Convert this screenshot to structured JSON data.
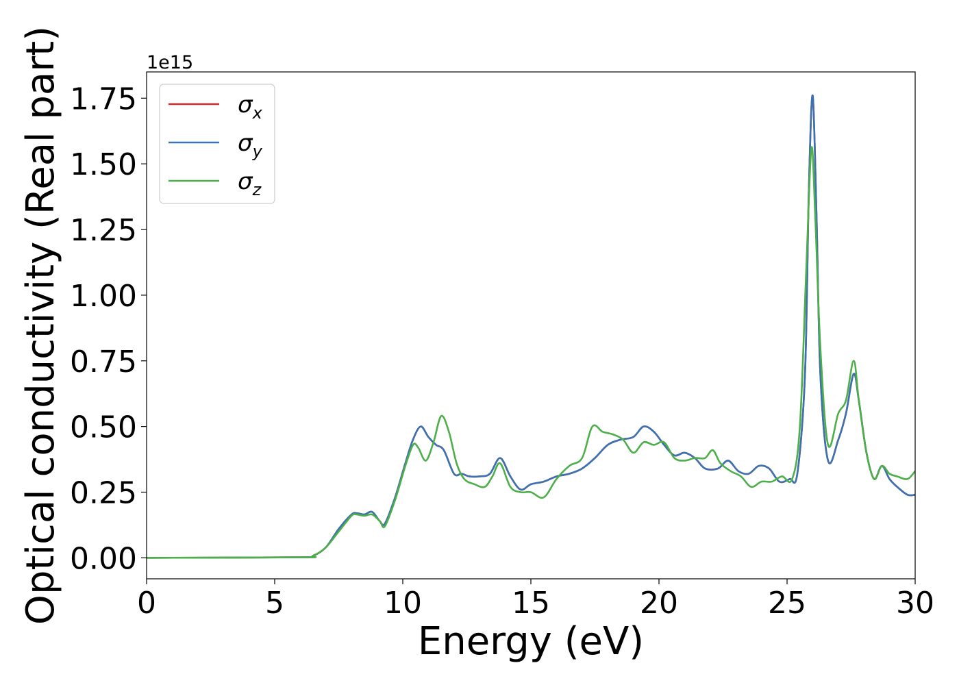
{
  "chart_data": {
    "type": "line",
    "xlabel": "Energy (eV)",
    "ylabel": "Optical conductivity (Real part)",
    "y_offset_label": "1e15",
    "xlim": [
      0,
      30
    ],
    "ylim": [
      -0.08,
      1.85
    ],
    "x_ticks": [
      0,
      5,
      10,
      15,
      20,
      25,
      30
    ],
    "x_tick_labels": [
      "0",
      "5",
      "10",
      "15",
      "20",
      "25",
      "30"
    ],
    "y_ticks": [
      0,
      0.25,
      0.5,
      0.75,
      1.0,
      1.25,
      1.5,
      1.75
    ],
    "y_tick_labels": [
      "0.00",
      "0.25",
      "0.50",
      "0.75",
      "1.00",
      "1.25",
      "1.50",
      "1.75"
    ],
    "grid": false,
    "legend_position": "top-left",
    "series": [
      {
        "name": "σ",
        "subscript": "x",
        "color": "#d62728",
        "x": [
          0,
          6,
          6.5,
          7,
          7.5,
          8,
          8.2,
          8.5,
          8.8,
          9.1,
          9.3,
          9.7,
          10.1,
          10.4,
          10.7,
          11,
          11.3,
          11.6,
          12,
          12.3,
          12.6,
          13,
          13.4,
          13.8,
          14.2,
          14.6,
          15,
          15.5,
          16,
          16.5,
          17,
          17.5,
          18,
          18.5,
          19,
          19.4,
          19.8,
          20.2,
          20.6,
          21,
          21.4,
          21.8,
          22.3,
          22.7,
          23.1,
          23.5,
          23.9,
          24.3,
          24.7,
          25.1,
          25.4,
          25.7,
          25.85,
          26,
          26.15,
          26.3,
          26.6,
          27,
          27.3,
          27.6,
          27.8,
          28.1,
          28.4,
          28.7,
          29,
          29.3,
          29.7,
          30
        ],
        "values": [
          0.0,
          0.002,
          0.008,
          0.04,
          0.11,
          0.165,
          0.17,
          0.165,
          0.175,
          0.14,
          0.13,
          0.23,
          0.36,
          0.45,
          0.5,
          0.46,
          0.43,
          0.41,
          0.32,
          0.32,
          0.31,
          0.31,
          0.32,
          0.38,
          0.31,
          0.26,
          0.28,
          0.29,
          0.31,
          0.32,
          0.34,
          0.38,
          0.43,
          0.45,
          0.46,
          0.5,
          0.48,
          0.43,
          0.39,
          0.4,
          0.38,
          0.34,
          0.34,
          0.37,
          0.33,
          0.32,
          0.35,
          0.34,
          0.29,
          0.3,
          0.32,
          0.7,
          1.4,
          1.76,
          1.3,
          0.7,
          0.37,
          0.45,
          0.55,
          0.7,
          0.6,
          0.4,
          0.3,
          0.35,
          0.3,
          0.27,
          0.24,
          0.24
        ]
      },
      {
        "name": "σ",
        "subscript": "y",
        "color": "#3a73b2",
        "x": [
          0,
          6,
          6.5,
          7,
          7.5,
          8,
          8.2,
          8.5,
          8.8,
          9.1,
          9.3,
          9.7,
          10.1,
          10.4,
          10.7,
          11,
          11.3,
          11.6,
          12,
          12.3,
          12.6,
          13,
          13.4,
          13.8,
          14.2,
          14.6,
          15,
          15.5,
          16,
          16.5,
          17,
          17.5,
          18,
          18.5,
          19,
          19.4,
          19.8,
          20.2,
          20.6,
          21,
          21.4,
          21.8,
          22.3,
          22.7,
          23.1,
          23.5,
          23.9,
          24.3,
          24.7,
          25.1,
          25.4,
          25.7,
          25.85,
          26,
          26.15,
          26.3,
          26.6,
          27,
          27.3,
          27.6,
          27.8,
          28.1,
          28.4,
          28.7,
          29,
          29.3,
          29.7,
          30
        ],
        "values": [
          0.0,
          0.002,
          0.008,
          0.04,
          0.11,
          0.165,
          0.17,
          0.165,
          0.175,
          0.14,
          0.13,
          0.23,
          0.36,
          0.45,
          0.5,
          0.46,
          0.43,
          0.41,
          0.32,
          0.32,
          0.31,
          0.31,
          0.32,
          0.38,
          0.31,
          0.26,
          0.28,
          0.29,
          0.31,
          0.32,
          0.34,
          0.38,
          0.43,
          0.45,
          0.46,
          0.5,
          0.48,
          0.43,
          0.39,
          0.4,
          0.38,
          0.34,
          0.34,
          0.37,
          0.33,
          0.32,
          0.35,
          0.34,
          0.29,
          0.3,
          0.32,
          0.7,
          1.4,
          1.76,
          1.3,
          0.7,
          0.37,
          0.45,
          0.55,
          0.7,
          0.6,
          0.4,
          0.3,
          0.35,
          0.3,
          0.27,
          0.24,
          0.24
        ]
      },
      {
        "name": "σ",
        "subscript": "z",
        "color": "#4daf4a",
        "x": [
          0,
          6,
          6.5,
          7,
          7.5,
          8,
          8.2,
          8.5,
          8.8,
          9.1,
          9.3,
          9.7,
          10.1,
          10.4,
          10.6,
          10.9,
          11.2,
          11.5,
          11.8,
          12.1,
          12.4,
          12.8,
          13.2,
          13.5,
          13.8,
          14.2,
          14.6,
          15,
          15.5,
          16,
          16.5,
          17,
          17.4,
          17.8,
          18.2,
          18.6,
          19,
          19.4,
          19.8,
          20.2,
          20.6,
          21,
          21.4,
          21.8,
          22.1,
          22.4,
          22.8,
          23.2,
          23.6,
          24,
          24.4,
          24.8,
          25.2,
          25.5,
          25.75,
          25.95,
          26.1,
          26.3,
          26.6,
          27,
          27.3,
          27.6,
          27.8,
          28.1,
          28.4,
          28.7,
          29,
          29.3,
          29.7,
          30
        ],
        "values": [
          0.0,
          0.002,
          0.008,
          0.04,
          0.1,
          0.16,
          0.165,
          0.16,
          0.165,
          0.14,
          0.12,
          0.22,
          0.35,
          0.43,
          0.42,
          0.37,
          0.44,
          0.54,
          0.48,
          0.36,
          0.3,
          0.28,
          0.27,
          0.31,
          0.36,
          0.27,
          0.25,
          0.25,
          0.23,
          0.3,
          0.35,
          0.38,
          0.5,
          0.48,
          0.47,
          0.45,
          0.4,
          0.44,
          0.43,
          0.44,
          0.38,
          0.37,
          0.38,
          0.38,
          0.41,
          0.36,
          0.33,
          0.31,
          0.27,
          0.29,
          0.29,
          0.31,
          0.3,
          0.5,
          1.1,
          1.56,
          1.3,
          0.8,
          0.43,
          0.55,
          0.6,
          0.75,
          0.6,
          0.4,
          0.3,
          0.35,
          0.32,
          0.31,
          0.3,
          0.33
        ]
      }
    ]
  }
}
